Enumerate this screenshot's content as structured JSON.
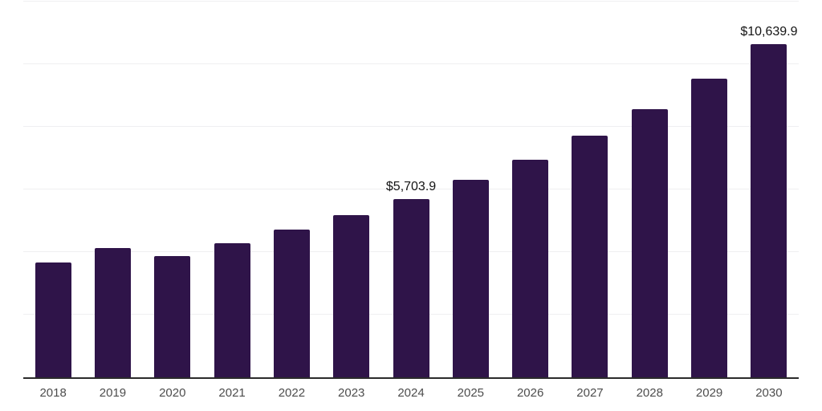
{
  "chart_data": {
    "type": "bar",
    "title": "",
    "xlabel": "",
    "ylabel": "",
    "ylim": [
      0,
      12000
    ],
    "gridline_values": [
      2000,
      4000,
      6000,
      8000,
      10000,
      12000
    ],
    "grid": "horizontal-only",
    "legend": "none",
    "bar_color": "#2f1449",
    "axis_line_color": "#2b2b2b",
    "gridline_color": "#efeff1",
    "tick_label_color": "#4d4d4d",
    "data_label_color": "#141414",
    "categories": [
      "2018",
      "2019",
      "2020",
      "2021",
      "2022",
      "2023",
      "2024",
      "2025",
      "2026",
      "2027",
      "2028",
      "2029",
      "2030"
    ],
    "values": [
      3660,
      4140,
      3880,
      4280,
      4710,
      5190,
      5703.9,
      6300,
      6960,
      7730,
      8560,
      9530,
      10639.9
    ],
    "data_labels": [
      "",
      "",
      "",
      "",
      "",
      "",
      "$5,703.9",
      "",
      "",
      "",
      "",
      "",
      "$10,639.9"
    ]
  }
}
